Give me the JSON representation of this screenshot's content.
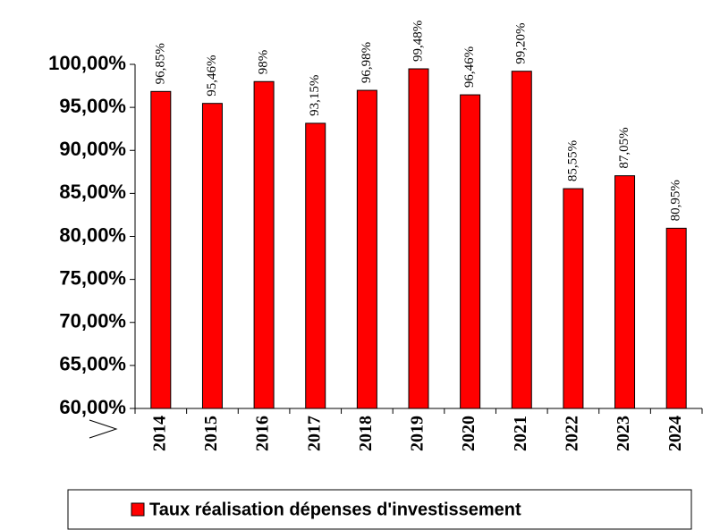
{
  "chart_data": {
    "type": "bar",
    "categories": [
      "2014",
      "2015",
      "2016",
      "2017",
      "2018",
      "2019",
      "2020",
      "2021",
      "2022",
      "2023",
      "2024"
    ],
    "series": [
      {
        "name": "Taux réalisation dépenses d'investissement",
        "color": "#ff0000",
        "values": [
          96.85,
          95.46,
          98,
          93.15,
          96.98,
          99.48,
          96.46,
          99.2,
          85.55,
          87.05,
          80.95
        ],
        "value_labels": [
          "96,85%",
          "95,46%",
          "98%",
          "93,15%",
          "96,98%",
          "99,48%",
          "96,46%",
          "99,20%",
          "85,55%",
          "87,05%",
          "80,95%"
        ]
      }
    ],
    "ylim": [
      60,
      100
    ],
    "yticks": [
      {
        "value": 60,
        "label": "60,00%"
      },
      {
        "value": 65,
        "label": "65,00%"
      },
      {
        "value": 70,
        "label": "70,00%"
      },
      {
        "value": 75,
        "label": "75,00%"
      },
      {
        "value": 80,
        "label": "80,00%"
      },
      {
        "value": 85,
        "label": "85,00%"
      },
      {
        "value": 90,
        "label": "90,00%"
      },
      {
        "value": 95,
        "label": "95,00%"
      },
      {
        "value": 100,
        "label": "100,00%"
      }
    ],
    "grid": false
  }
}
